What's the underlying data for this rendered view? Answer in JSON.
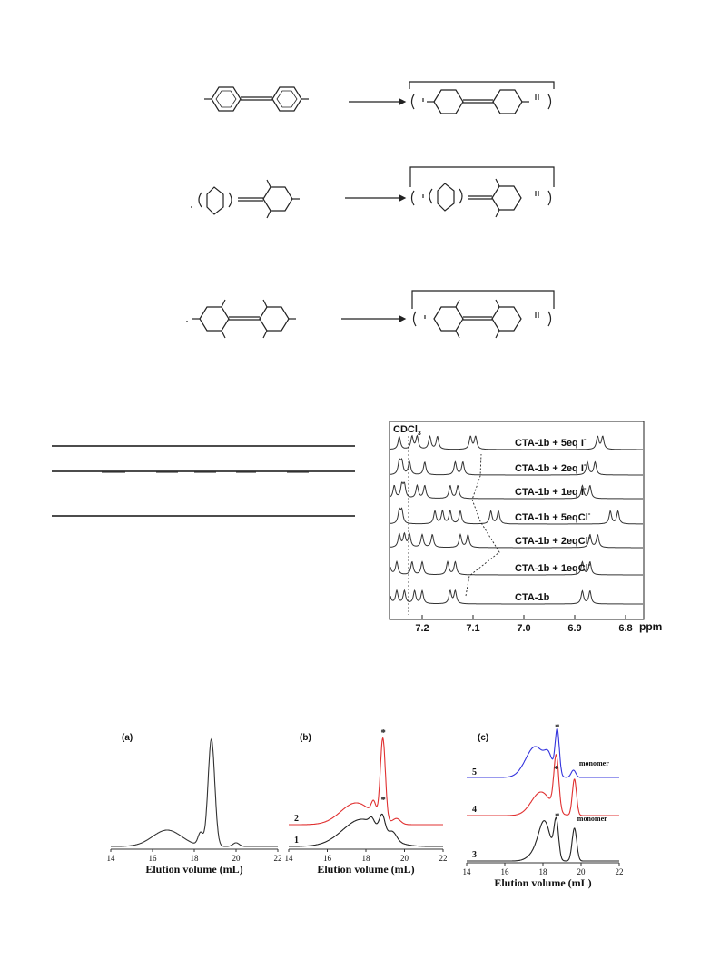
{
  "nmr": {
    "solvent_label": "CDCl",
    "solvent_sub": "3",
    "ppm_label": "ppm",
    "xticks": [
      "7.2",
      "7.1",
      "7.0",
      "6.9",
      "6.8"
    ],
    "traces": [
      {
        "label": "CTA-1b + 5eq I",
        "sup": "-"
      },
      {
        "label": "CTA-1b + 2eq I",
        "sup": "-"
      },
      {
        "label": "CTA-1b + 1eq I",
        "sup": "-"
      },
      {
        "label": "CTA-1b + 5eqCl",
        "sup": "-"
      },
      {
        "label": "CTA-1b + 2eqCl",
        "sup": "-"
      },
      {
        "label": "CTA-1b + 1eqCl",
        "sup": "-"
      },
      {
        "label": "CTA-1b",
        "sup": ""
      }
    ]
  },
  "gpc": {
    "xlabel": "Elution volume (mL)",
    "panels": [
      {
        "tag": "(a)",
        "ticks": [
          "14",
          "16",
          "18",
          "20",
          "22"
        ],
        "traces": []
      },
      {
        "tag": "(b)",
        "ticks": [
          "14",
          "16",
          "18",
          "20",
          "22"
        ],
        "traces": [
          {
            "num": "2",
            "color": "#e03030"
          },
          {
            "num": "1",
            "color": "#222222"
          }
        ],
        "stars": [
          "*",
          "*"
        ]
      },
      {
        "tag": "(c)",
        "ticks": [
          "14",
          "16",
          "18",
          "20",
          "22"
        ],
        "traces": [
          {
            "num": "5",
            "color": "#3333dd"
          },
          {
            "num": "4",
            "color": "#e03030"
          },
          {
            "num": "3",
            "color": "#222222"
          }
        ],
        "stars": [
          "*",
          "*",
          "*"
        ],
        "annotations": [
          "monomer",
          "monomer"
        ]
      }
    ]
  }
}
